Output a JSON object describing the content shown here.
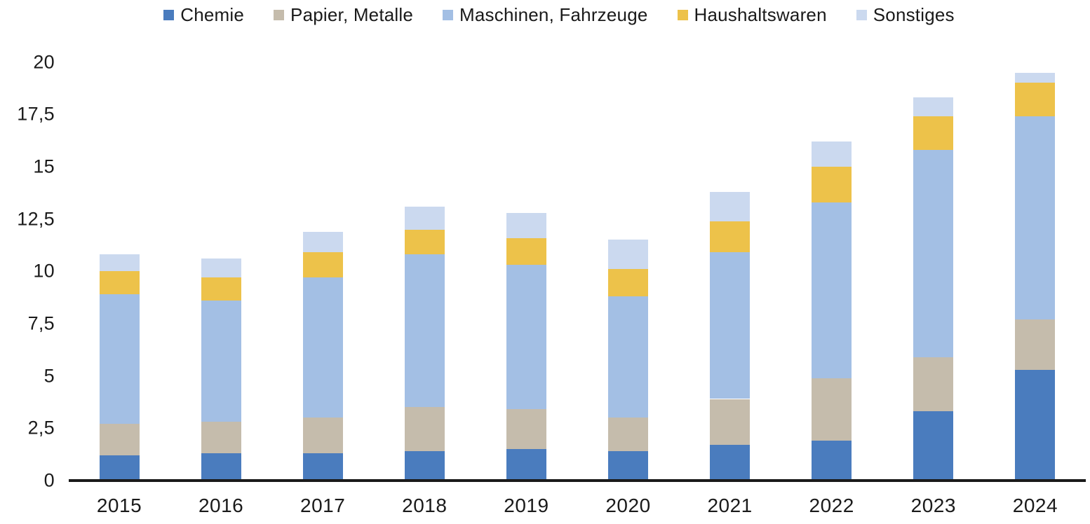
{
  "chart_data": {
    "type": "bar",
    "stacked": true,
    "title": "",
    "background": "#ffffff",
    "text_color": "#1a1a1a",
    "axis_line_color": "#1a1a1a",
    "categories": [
      "2015",
      "2016",
      "2017",
      "2018",
      "2019",
      "2020",
      "2021",
      "2022",
      "2023",
      "2024"
    ],
    "series": [
      {
        "name": "Chemie",
        "color": "#4a7cbe",
        "values": [
          1.2,
          1.3,
          1.3,
          1.4,
          1.5,
          1.4,
          1.7,
          1.9,
          3.3,
          5.3
        ]
      },
      {
        "name": "Papier, Metalle",
        "color": "#c5bcac",
        "values": [
          1.5,
          1.5,
          1.7,
          2.1,
          1.9,
          1.6,
          2.2,
          3.0,
          2.6,
          2.4
        ]
      },
      {
        "name": "Maschinen, Fahrzeuge",
        "color": "#a3bfe4",
        "values": [
          6.2,
          5.8,
          6.7,
          7.3,
          6.9,
          5.8,
          7.0,
          8.4,
          9.9,
          9.7
        ]
      },
      {
        "name": "Haushaltswaren",
        "color": "#edc24a",
        "values": [
          1.1,
          1.1,
          1.2,
          1.2,
          1.3,
          1.3,
          1.5,
          1.7,
          1.6,
          1.6
        ]
      },
      {
        "name": "Sonstiges",
        "color": "#cbd9ef",
        "values": [
          0.8,
          0.9,
          1.0,
          1.1,
          1.2,
          1.4,
          1.4,
          1.2,
          0.9,
          0.5
        ]
      }
    ],
    "totals": [
      10.8,
      10.6,
      11.9,
      13.1,
      12.8,
      11.5,
      13.8,
      16.2,
      18.3,
      19.5
    ],
    "y_axis": {
      "min": 0,
      "max": 20,
      "step": 2.5,
      "tick_labels_bottom_to_top": [
        "0",
        "2,5",
        "5",
        "7,5",
        "10",
        "12,5",
        "15",
        "17,5",
        "20"
      ],
      "decimal_separator": ","
    },
    "x_axis": {
      "tick_labels": [
        "2015",
        "2016",
        "2017",
        "2018",
        "2019",
        "2020",
        "2021",
        "2022",
        "2023",
        "2024"
      ]
    },
    "legend": {
      "position": "top",
      "entries": [
        "Chemie",
        "Papier, Metalle",
        "Maschinen, Fahrzeuge",
        "Haushaltswaren",
        "Sonstiges"
      ]
    },
    "grid": "off"
  }
}
